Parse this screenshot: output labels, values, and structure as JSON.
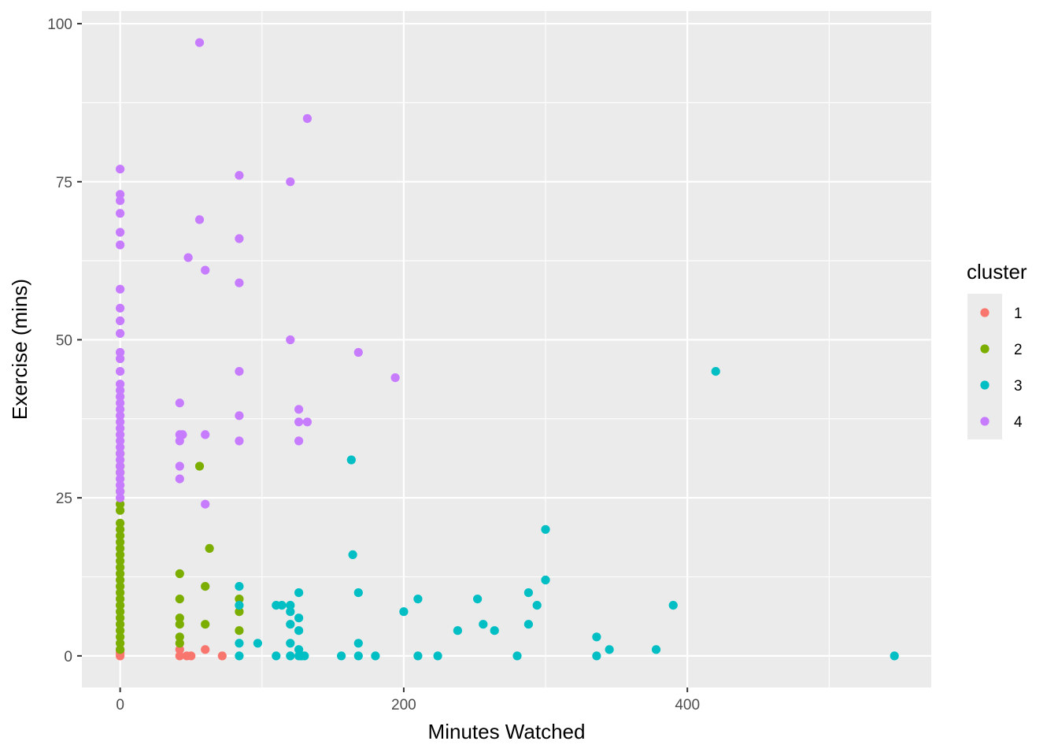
{
  "chart_data": {
    "type": "scatter",
    "xlabel": "Minutes Watched",
    "ylabel": "Exercise (mins)",
    "xlim": [
      -27,
      572
    ],
    "ylim": [
      -5,
      102
    ],
    "xticks": [
      0,
      200,
      400
    ],
    "xtick_labels": [
      "0",
      "200",
      "400"
    ],
    "yticks": [
      0,
      25,
      50,
      75,
      100
    ],
    "ytick_labels": [
      "0",
      "25",
      "50",
      "75",
      "100"
    ],
    "grid": true,
    "legend": {
      "title": "cluster",
      "placement": "right",
      "entries": [
        "1",
        "2",
        "3",
        "4"
      ]
    },
    "colors": {
      "panel_bg": "#ebebeb",
      "grid": "#ffffff",
      "1": "#F8766D",
      "2": "#7CAE00",
      "3": "#00BFC4",
      "4": "#C77CFF"
    },
    "series": [
      {
        "name": "1",
        "points": [
          [
            0,
            0
          ],
          [
            0,
            0.5
          ],
          [
            0,
            1
          ],
          [
            42,
            0
          ],
          [
            42,
            1
          ],
          [
            47,
            0
          ],
          [
            50,
            0
          ],
          [
            60,
            1
          ],
          [
            72,
            0
          ]
        ]
      },
      {
        "name": "2",
        "points": [
          [
            0,
            1
          ],
          [
            0,
            2
          ],
          [
            0,
            3
          ],
          [
            0,
            4
          ],
          [
            0,
            5
          ],
          [
            0,
            6
          ],
          [
            0,
            7
          ],
          [
            0,
            8
          ],
          [
            0,
            9
          ],
          [
            0,
            10
          ],
          [
            0,
            11
          ],
          [
            0,
            12
          ],
          [
            0,
            13
          ],
          [
            0,
            14
          ],
          [
            0,
            15
          ],
          [
            0,
            16
          ],
          [
            0,
            17
          ],
          [
            0,
            18
          ],
          [
            0,
            19
          ],
          [
            0,
            20
          ],
          [
            0,
            21
          ],
          [
            0,
            23
          ],
          [
            0,
            24
          ],
          [
            0,
            26
          ],
          [
            0,
            29
          ],
          [
            0,
            30
          ],
          [
            0,
            32
          ],
          [
            42,
            2
          ],
          [
            42,
            3
          ],
          [
            42,
            5
          ],
          [
            42,
            6
          ],
          [
            42,
            9
          ],
          [
            42,
            13
          ],
          [
            56,
            30
          ],
          [
            60,
            5
          ],
          [
            60,
            11
          ],
          [
            63,
            17
          ],
          [
            84,
            4
          ],
          [
            84,
            7
          ],
          [
            84,
            9
          ]
        ]
      },
      {
        "name": "3",
        "points": [
          [
            84,
            0
          ],
          [
            84,
            2
          ],
          [
            84,
            8
          ],
          [
            84,
            11
          ],
          [
            97,
            2
          ],
          [
            110,
            0
          ],
          [
            110,
            8
          ],
          [
            114,
            8
          ],
          [
            120,
            0
          ],
          [
            120,
            2
          ],
          [
            120,
            5
          ],
          [
            120,
            7
          ],
          [
            120,
            8
          ],
          [
            126,
            0
          ],
          [
            126,
            1
          ],
          [
            126,
            4
          ],
          [
            126,
            6
          ],
          [
            126,
            10
          ],
          [
            128,
            0
          ],
          [
            130,
            0
          ],
          [
            156,
            0
          ],
          [
            163,
            31
          ],
          [
            164,
            16
          ],
          [
            168,
            0
          ],
          [
            168,
            2
          ],
          [
            168,
            10
          ],
          [
            180,
            0
          ],
          [
            200,
            7
          ],
          [
            210,
            0
          ],
          [
            210,
            9
          ],
          [
            224,
            0
          ],
          [
            238,
            4
          ],
          [
            252,
            9
          ],
          [
            256,
            5
          ],
          [
            264,
            4
          ],
          [
            280,
            0
          ],
          [
            288,
            5
          ],
          [
            288,
            10
          ],
          [
            294,
            8
          ],
          [
            300,
            12
          ],
          [
            300,
            20
          ],
          [
            336,
            0
          ],
          [
            336,
            3
          ],
          [
            345,
            1
          ],
          [
            378,
            1
          ],
          [
            390,
            8
          ],
          [
            420,
            45
          ],
          [
            546,
            0
          ]
        ]
      },
      {
        "name": "4",
        "points": [
          [
            0,
            25
          ],
          [
            0,
            26
          ],
          [
            0,
            27
          ],
          [
            0,
            28
          ],
          [
            0,
            29
          ],
          [
            0,
            30
          ],
          [
            0,
            31
          ],
          [
            0,
            32
          ],
          [
            0,
            33
          ],
          [
            0,
            34
          ],
          [
            0,
            35
          ],
          [
            0,
            36
          ],
          [
            0,
            37
          ],
          [
            0,
            38
          ],
          [
            0,
            39
          ],
          [
            0,
            40
          ],
          [
            0,
            41
          ],
          [
            0,
            42
          ],
          [
            0,
            43
          ],
          [
            0,
            45
          ],
          [
            0,
            47
          ],
          [
            0,
            48
          ],
          [
            0,
            51
          ],
          [
            0,
            53
          ],
          [
            0,
            55
          ],
          [
            0,
            58
          ],
          [
            0,
            65
          ],
          [
            0,
            67
          ],
          [
            0,
            70
          ],
          [
            0,
            72
          ],
          [
            0,
            73
          ],
          [
            0,
            77
          ],
          [
            42,
            28
          ],
          [
            42,
            30
          ],
          [
            42,
            34
          ],
          [
            42,
            35
          ],
          [
            42,
            40
          ],
          [
            44,
            35
          ],
          [
            48,
            63
          ],
          [
            56,
            69
          ],
          [
            56,
            97
          ],
          [
            60,
            24
          ],
          [
            60,
            35
          ],
          [
            60,
            61
          ],
          [
            84,
            34
          ],
          [
            84,
            38
          ],
          [
            84,
            45
          ],
          [
            84,
            59
          ],
          [
            84,
            66
          ],
          [
            84,
            76
          ],
          [
            120,
            50
          ],
          [
            120,
            75
          ],
          [
            126,
            34
          ],
          [
            126,
            37
          ],
          [
            126,
            39
          ],
          [
            132,
            37
          ],
          [
            132,
            85
          ],
          [
            168,
            48
          ],
          [
            194,
            44
          ]
        ]
      }
    ]
  }
}
